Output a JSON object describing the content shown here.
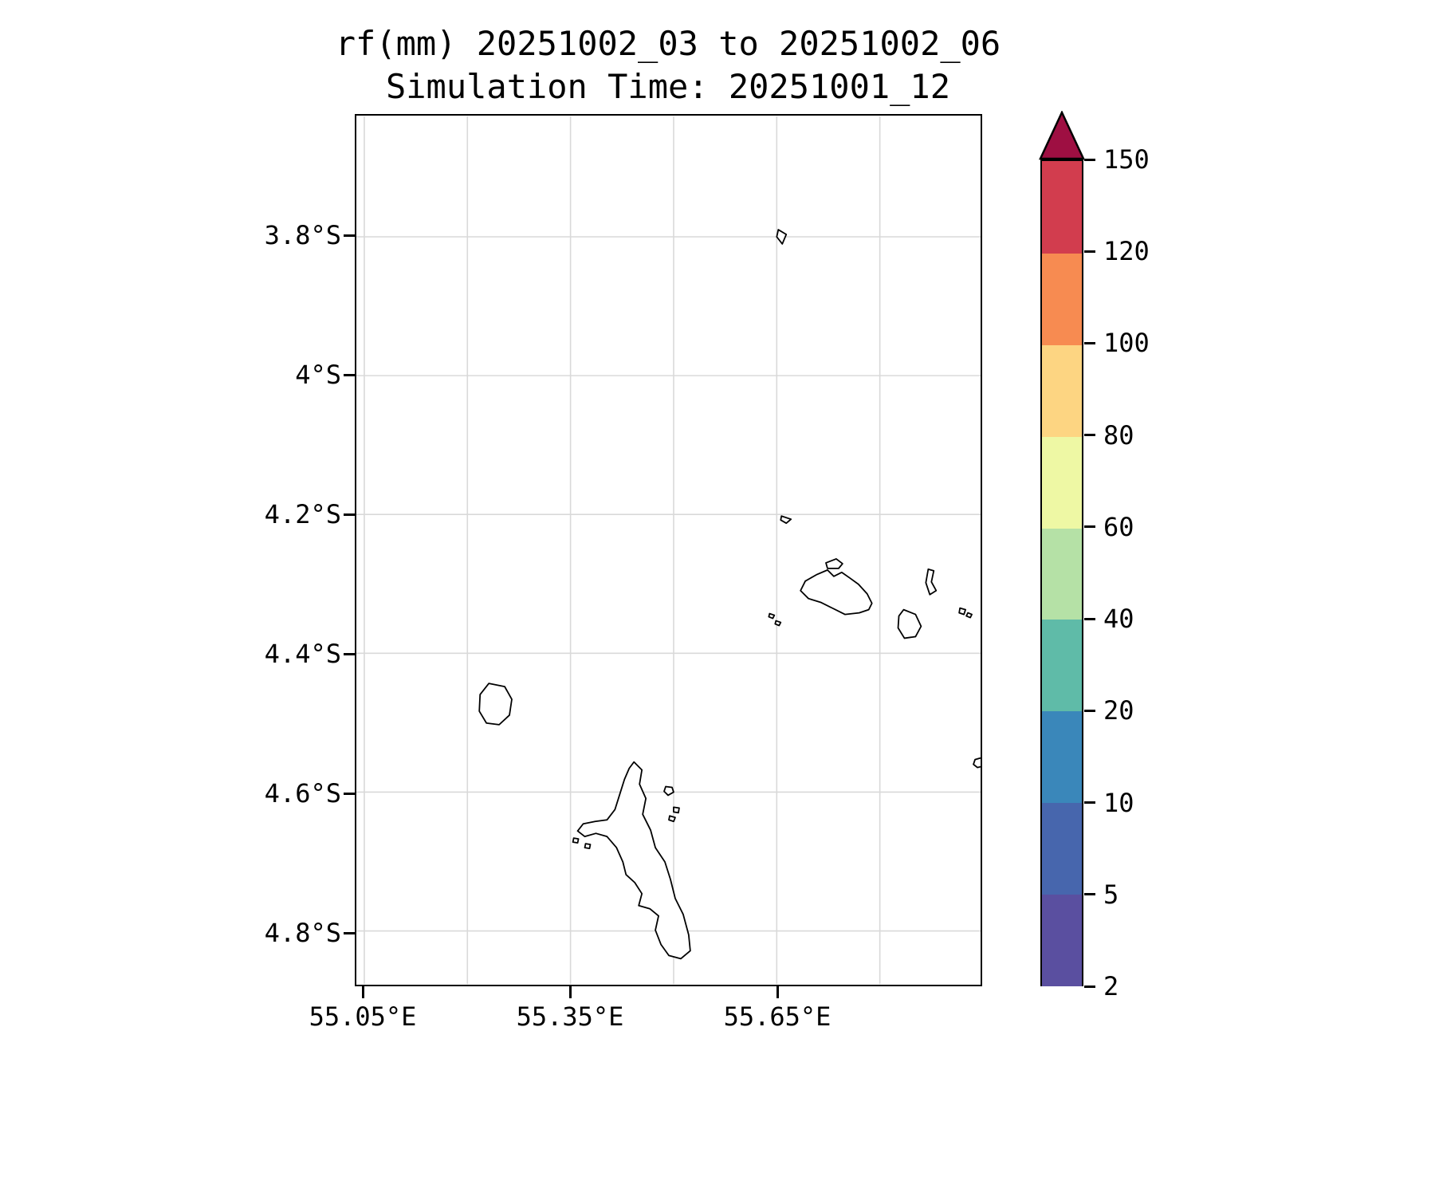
{
  "title": "rf(mm) 20251002_03 to 20251002_06",
  "subtitle": "Simulation Time: 20251001_12",
  "x_axis": {
    "tick_labels": [
      "55.05°E",
      "55.35°E",
      "55.65°E"
    ]
  },
  "y_axis": {
    "tick_labels": [
      "3.8°S",
      "4°S",
      "4.2°S",
      "4.4°S",
      "4.6°S",
      "4.8°S"
    ]
  },
  "colorbar": {
    "tick_labels_bottom_to_top": [
      "2",
      "5",
      "10",
      "20",
      "40",
      "60",
      "80",
      "100",
      "120",
      "150"
    ],
    "segment_colors_bottom_to_top": [
      "#5a4fa0",
      "#4766ad",
      "#3a87ba",
      "#5fbba8",
      "#b5e1a6",
      "#eef8a4",
      "#fdd582",
      "#f78b51",
      "#d23d4e"
    ],
    "extend_color": "#9e0f42"
  },
  "chart_data": {
    "type": "heatmap",
    "title": "rf(mm) 20251002_03 to 20251002_06",
    "subtitle": "Simulation Time: 20251001_12",
    "variable": "rf (mm)",
    "x_ticks": [
      "55.05°E",
      "55.35°E",
      "55.65°E"
    ],
    "y_ticks": [
      "3.8°S",
      "4°S",
      "4.2°S",
      "4.4°S",
      "4.6°S",
      "4.8°S"
    ],
    "xlim": [
      55.04,
      55.95
    ],
    "ylim_deg_south": [
      3.63,
      4.88
    ],
    "levels_mm": [
      2,
      5,
      10,
      20,
      40,
      60,
      80,
      100,
      120,
      150
    ],
    "colorbar_extend": "max",
    "values": "no rainfall at or above the minimum 2 mm contour level is plotted; map interior is blank white showing only Seychelles island coastlines (Mahe, Silhouette, Praslin, La Digue and nearby islets)",
    "grid": true,
    "legend_position": "right colorbar"
  }
}
